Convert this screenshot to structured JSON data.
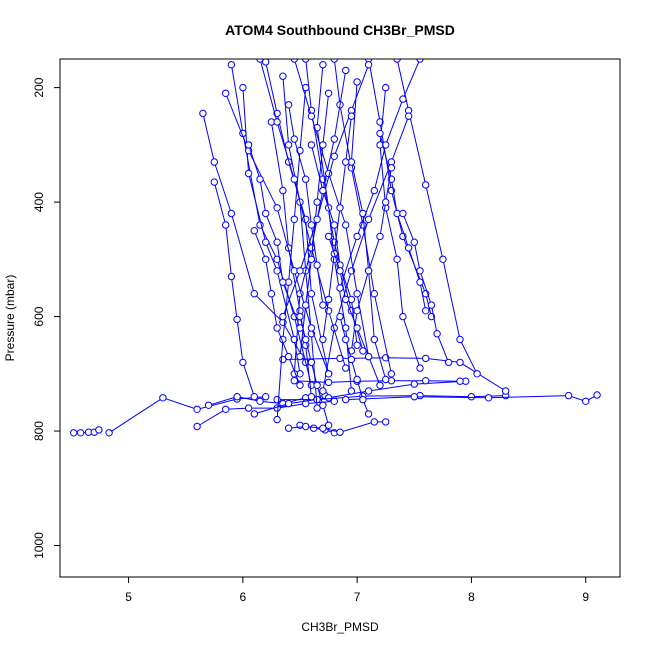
{
  "chart_data": {
    "type": "scatter",
    "title": "ATOM4 Southbound CH3Br_PMSD",
    "xlabel": "CH3Br_PMSD",
    "ylabel": "Pressure (mbar)",
    "xlim": [
      4.4,
      9.3
    ],
    "ylim": [
      1055,
      150
    ],
    "y_reversed": true,
    "x_ticks": [
      5,
      6,
      7,
      8,
      9
    ],
    "y_ticks": [
      200,
      400,
      600,
      800,
      1000
    ],
    "grid": false,
    "legend": "none",
    "series_color": "#0000ff",
    "marker": "open-circle",
    "connect_points": true,
    "series": [
      {
        "x": [
          4.52,
          4.58,
          4.65,
          4.7,
          4.74
        ],
        "y": [
          803,
          803,
          802,
          802,
          798
        ]
      },
      {
        "x": [
          4.83,
          5.3,
          5.6,
          5.95,
          6.2
        ],
        "y": [
          803,
          742,
          762,
          744,
          740
        ]
      },
      {
        "x": [
          5.6,
          5.85,
          6.05,
          6.3,
          6.55,
          6.8
        ],
        "y": [
          792,
          762,
          760,
          760,
          752,
          748
        ]
      },
      {
        "x": [
          5.7,
          5.95,
          6.15,
          6.35,
          6.55,
          6.72
        ],
        "y": [
          755,
          740,
          748,
          752,
          742,
          738
        ]
      },
      {
        "x": [
          6.1,
          6.4,
          6.75,
          7.1,
          7.5,
          7.95
        ],
        "y": [
          770,
          752,
          742,
          730,
          718,
          713
        ]
      },
      {
        "x": [
          6.3,
          6.65,
          7.05,
          7.55,
          8.0,
          8.3
        ],
        "y": [
          745,
          745,
          739,
          738,
          740,
          738
        ]
      },
      {
        "x": [
          6.45,
          6.75,
          7.0,
          7.3,
          7.6,
          7.9
        ],
        "y": [
          712,
          715,
          713,
          712,
          712,
          713
        ]
      },
      {
        "x": [
          6.35,
          6.85,
          7.25,
          7.6,
          7.9,
          8.3
        ],
        "y": [
          675,
          673,
          672,
          673,
          680,
          730
        ]
      },
      {
        "x": [
          6.9,
          7.5,
          8.15,
          8.85,
          9.0,
          9.1
        ],
        "y": [
          745,
          740,
          742,
          738,
          748,
          737
        ]
      },
      {
        "x": [
          6.5,
          6.62,
          6.72,
          6.8
        ],
        "y": [
          790,
          795,
          798,
          803
        ]
      },
      {
        "x": [
          6.4,
          6.55,
          6.7,
          6.85,
          7.15,
          7.25
        ],
        "y": [
          795,
          792,
          795,
          802,
          784,
          784
        ]
      },
      {
        "x": [
          5.65,
          5.75,
          5.9,
          6.1,
          6.35,
          6.55
        ],
        "y": [
          245,
          330,
          420,
          560,
          610,
          680
        ]
      },
      {
        "x": [
          5.9,
          6.0,
          6.15,
          6.3,
          6.45,
          6.6
        ],
        "y": [
          160,
          280,
          440,
          500,
          600,
          720
        ]
      },
      {
        "x": [
          6.2,
          6.3,
          6.4,
          6.55,
          6.6,
          6.75
        ],
        "y": [
          155,
          245,
          330,
          430,
          560,
          700
        ]
      },
      {
        "x": [
          6.55,
          6.6,
          6.7,
          6.8,
          6.95,
          7.05
        ],
        "y": [
          150,
          240,
          360,
          470,
          590,
          660
        ]
      },
      {
        "x": [
          6.8,
          6.85,
          6.95,
          7.05,
          7.15,
          7.3
        ],
        "y": [
          150,
          230,
          340,
          440,
          560,
          700
        ]
      },
      {
        "x": [
          7.1,
          7.2,
          7.3,
          7.4,
          7.6,
          7.65
        ],
        "y": [
          150,
          260,
          380,
          460,
          560,
          600
        ]
      },
      {
        "x": [
          7.35,
          7.45,
          7.6,
          7.75,
          7.9,
          8.05
        ],
        "y": [
          150,
          240,
          370,
          500,
          640,
          700
        ]
      },
      {
        "x": [
          6.0,
          6.05,
          6.2,
          6.3,
          6.45,
          6.5
        ],
        "y": [
          200,
          350,
          470,
          520,
          640,
          700
        ]
      },
      {
        "x": [
          6.35,
          6.4,
          6.5,
          6.55,
          6.6,
          6.65
        ],
        "y": [
          180,
          300,
          400,
          520,
          630,
          760
        ]
      },
      {
        "x": [
          6.7,
          6.65,
          6.75,
          6.8,
          6.9,
          6.95
        ],
        "y": [
          160,
          270,
          410,
          500,
          620,
          730
        ]
      },
      {
        "x": [
          7.0,
          6.95,
          7.05,
          7.1,
          7.15,
          7.25
        ],
        "y": [
          190,
          330,
          420,
          520,
          640,
          710
        ]
      },
      {
        "x": [
          7.25,
          7.2,
          7.25,
          7.35,
          7.4,
          7.55
        ],
        "y": [
          200,
          300,
          410,
          500,
          600,
          690
        ]
      },
      {
        "x": [
          6.25,
          6.35,
          6.4,
          6.5,
          6.55,
          6.6
        ],
        "y": [
          260,
          380,
          480,
          590,
          650,
          740
        ]
      },
      {
        "x": [
          6.55,
          6.5,
          6.45,
          6.4,
          6.35,
          6.3
        ],
        "y": [
          200,
          310,
          430,
          540,
          640,
          780
        ]
      },
      {
        "x": [
          6.9,
          6.8,
          6.7,
          6.6,
          6.5,
          6.45
        ],
        "y": [
          170,
          290,
          380,
          480,
          560,
          700
        ]
      },
      {
        "x": [
          7.45,
          7.3,
          7.1,
          6.95,
          6.8,
          6.7
        ],
        "y": [
          250,
          330,
          430,
          520,
          620,
          730
        ]
      },
      {
        "x": [
          5.85,
          6.05,
          6.3,
          6.45,
          6.6,
          6.75
        ],
        "y": [
          210,
          310,
          410,
          520,
          620,
          700
        ]
      },
      {
        "x": [
          6.15,
          6.3,
          6.45,
          6.6,
          6.75,
          6.9
        ],
        "y": [
          150,
          260,
          360,
          480,
          590,
          690
        ]
      },
      {
        "x": [
          6.45,
          6.6,
          6.75,
          6.9,
          7.0,
          7.1
        ],
        "y": [
          150,
          250,
          350,
          440,
          560,
          670
        ]
      },
      {
        "x": [
          6.75,
          6.7,
          6.65,
          6.6,
          6.55,
          6.5
        ],
        "y": [
          210,
          300,
          400,
          500,
          580,
          670
        ]
      },
      {
        "x": [
          7.1,
          6.95,
          6.8,
          6.65,
          6.5,
          6.35
        ],
        "y": [
          160,
          240,
          320,
          430,
          520,
          600
        ]
      },
      {
        "x": [
          7.55,
          7.4,
          7.25,
          7.15,
          7.0,
          6.85
        ],
        "y": [
          150,
          220,
          300,
          380,
          460,
          550
        ]
      },
      {
        "x": [
          5.75,
          5.85,
          5.9,
          5.95,
          6.0,
          6.1
        ],
        "y": [
          365,
          440,
          530,
          605,
          680,
          740
        ]
      },
      {
        "x": [
          6.05,
          6.15,
          6.2,
          6.3,
          6.35,
          6.5
        ],
        "y": [
          300,
          360,
          420,
          470,
          540,
          620
        ]
      },
      {
        "x": [
          6.6,
          6.7,
          6.8,
          6.85,
          6.95,
          7.0
        ],
        "y": [
          300,
          380,
          440,
          510,
          570,
          650
        ]
      },
      {
        "x": [
          7.2,
          7.3,
          7.35,
          7.45,
          7.55,
          7.6
        ],
        "y": [
          280,
          360,
          420,
          480,
          540,
          590
        ]
      },
      {
        "x": [
          6.4,
          6.45,
          6.55,
          6.6,
          6.65,
          6.7
        ],
        "y": [
          230,
          290,
          360,
          440,
          510,
          580
        ]
      },
      {
        "x": [
          6.95,
          6.9,
          6.85,
          6.8,
          6.75,
          6.7
        ],
        "y": [
          250,
          330,
          410,
          490,
          570,
          640
        ]
      },
      {
        "x": [
          7.3,
          7.25,
          7.2,
          7.1,
          7.0,
          6.95
        ],
        "y": [
          340,
          400,
          460,
          520,
          590,
          660
        ]
      },
      {
        "x": [
          6.1,
          6.2,
          6.25,
          6.3,
          6.4,
          6.5
        ],
        "y": [
          450,
          500,
          560,
          620,
          670,
          720
        ]
      },
      {
        "x": [
          6.75,
          6.85,
          6.9,
          7.0,
          7.1,
          7.2
        ],
        "y": [
          460,
          520,
          570,
          620,
          670,
          720
        ]
      },
      {
        "x": [
          7.4,
          7.5,
          7.55,
          7.65,
          7.7,
          7.8
        ],
        "y": [
          420,
          470,
          520,
          580,
          630,
          680
        ]
      },
      {
        "x": [
          6.5,
          6.55,
          6.6,
          6.65,
          6.7,
          6.75
        ],
        "y": [
          600,
          640,
          680,
          720,
          755,
          790
        ]
      },
      {
        "x": [
          6.85,
          6.9,
          6.95,
          7.0,
          7.05,
          7.1
        ],
        "y": [
          600,
          640,
          675,
          710,
          745,
          770
        ]
      }
    ]
  }
}
